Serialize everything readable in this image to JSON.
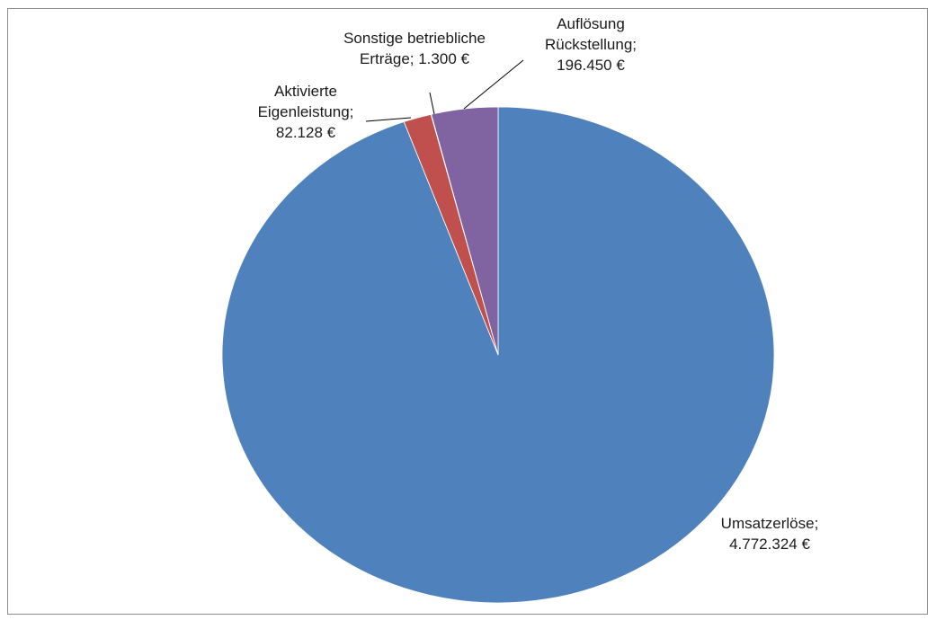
{
  "chart_data": {
    "type": "pie",
    "title": "",
    "start_angle_deg": 0,
    "direction": "clockwise",
    "slices": [
      {
        "name": "Umsatzerlöse",
        "value": 4772324,
        "color": "#4f81bd",
        "label_lines": [
          "Umsatzerlöse;",
          "4.772.324 €"
        ]
      },
      {
        "name": "Aktivierte Eigenleistung",
        "value": 82128,
        "color": "#c0504d",
        "label_lines": [
          "Aktivierte",
          "Eigenleistung;",
          "82.128 €"
        ]
      },
      {
        "name": "Sonstige betriebliche Erträge",
        "value": 1300,
        "color": "#9bbb59",
        "label_lines": [
          "Sonstige betriebliche",
          "Erträge; 1.300 €"
        ]
      },
      {
        "name": "Auflösung Rückstellung",
        "value": 196450,
        "color": "#8064a2",
        "label_lines": [
          "Auflösung",
          "Rückstellung;",
          "196.450 €"
        ]
      }
    ],
    "legend": "none",
    "slice_border_color": "#ffffff"
  }
}
